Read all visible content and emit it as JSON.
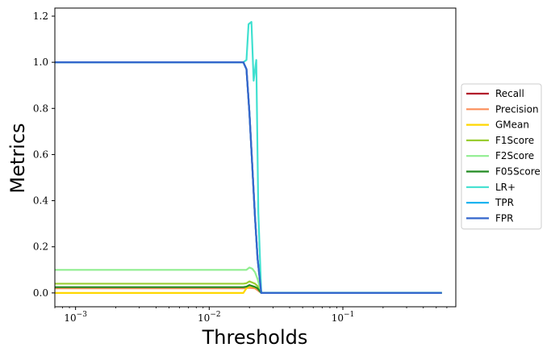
{
  "chart_data": {
    "type": "line",
    "xlabel": "Thresholds",
    "ylabel": "Metrics",
    "xscale": "log",
    "xlim": [
      0.0007,
      0.7
    ],
    "ylim": [
      -0.06,
      1.235
    ],
    "grid": false,
    "legend_position": "right",
    "x_ticks": [
      {
        "value": 0.001,
        "label": "10^{-3}",
        "base": "10",
        "exp": "−3"
      },
      {
        "value": 0.01,
        "label": "10^{-2}",
        "base": "10",
        "exp": "−2"
      },
      {
        "value": 0.1,
        "label": "10^{-1}",
        "base": "10",
        "exp": "−1"
      }
    ],
    "y_ticks": [
      {
        "value": 0.0,
        "label": "0.0"
      },
      {
        "value": 0.2,
        "label": "0.2"
      },
      {
        "value": 0.4,
        "label": "0.4"
      },
      {
        "value": 0.6,
        "label": "0.6"
      },
      {
        "value": 0.8,
        "label": "0.8"
      },
      {
        "value": 1.0,
        "label": "1.0"
      },
      {
        "value": 1.2,
        "label": "1.2"
      }
    ],
    "series": [
      {
        "name": "Recall",
        "color": "#b2182b",
        "x": [
          0.0007,
          0.018,
          0.019,
          0.02,
          0.021,
          0.022,
          0.023,
          0.0245,
          0.55
        ],
        "y": [
          1.0,
          1.0,
          0.97,
          0.78,
          0.55,
          0.33,
          0.15,
          0.0,
          0.0
        ]
      },
      {
        "name": "Precision",
        "color": "#fc8d59",
        "x": [
          0.0007,
          0.018,
          0.02,
          0.022,
          0.0245,
          0.55
        ],
        "y": [
          0.02,
          0.02,
          0.022,
          0.02,
          0.0,
          0.0
        ]
      },
      {
        "name": "GMean",
        "color": "#ffd700",
        "x": [
          0.0007,
          0.018,
          0.019,
          0.02,
          0.021,
          0.022,
          0.023,
          0.0245,
          0.55
        ],
        "y": [
          0.0,
          0.0,
          0.02,
          0.03,
          0.028,
          0.024,
          0.02,
          0.0,
          0.0
        ]
      },
      {
        "name": "F1Score",
        "color": "#9acd32",
        "x": [
          0.0007,
          0.018,
          0.019,
          0.02,
          0.021,
          0.022,
          0.023,
          0.0245,
          0.55
        ],
        "y": [
          0.04,
          0.04,
          0.042,
          0.05,
          0.045,
          0.04,
          0.03,
          0.0,
          0.0
        ]
      },
      {
        "name": "F2Score",
        "color": "#90ee90",
        "x": [
          0.0007,
          0.018,
          0.019,
          0.02,
          0.021,
          0.022,
          0.023,
          0.0245,
          0.55
        ],
        "y": [
          0.1,
          0.1,
          0.1,
          0.11,
          0.105,
          0.09,
          0.06,
          0.0,
          0.0
        ]
      },
      {
        "name": "F05Score",
        "color": "#228b22",
        "x": [
          0.0007,
          0.018,
          0.019,
          0.02,
          0.021,
          0.022,
          0.023,
          0.0245,
          0.55
        ],
        "y": [
          0.025,
          0.025,
          0.027,
          0.034,
          0.03,
          0.026,
          0.02,
          0.0,
          0.0
        ]
      },
      {
        "name": "LR+",
        "color": "#40e0d0",
        "x": [
          0.0007,
          0.018,
          0.019,
          0.0197,
          0.0207,
          0.0215,
          0.0225,
          0.0233,
          0.0245,
          0.55
        ],
        "y": [
          1.0,
          1.0,
          1.01,
          1.165,
          1.175,
          0.92,
          1.01,
          0.35,
          0.0,
          0.0
        ]
      },
      {
        "name": "TPR",
        "color": "#1eb4f0",
        "x": [
          0.0007,
          0.018,
          0.019,
          0.02,
          0.021,
          0.022,
          0.023,
          0.0245,
          0.55
        ],
        "y": [
          1.0,
          1.0,
          0.97,
          0.78,
          0.55,
          0.33,
          0.15,
          0.0,
          0.0
        ]
      },
      {
        "name": "FPR",
        "color": "#3366cc",
        "x": [
          0.0007,
          0.018,
          0.019,
          0.02,
          0.021,
          0.022,
          0.023,
          0.0245,
          0.55
        ],
        "y": [
          1.0,
          1.0,
          0.97,
          0.78,
          0.55,
          0.33,
          0.15,
          0.0,
          0.0
        ]
      }
    ]
  }
}
